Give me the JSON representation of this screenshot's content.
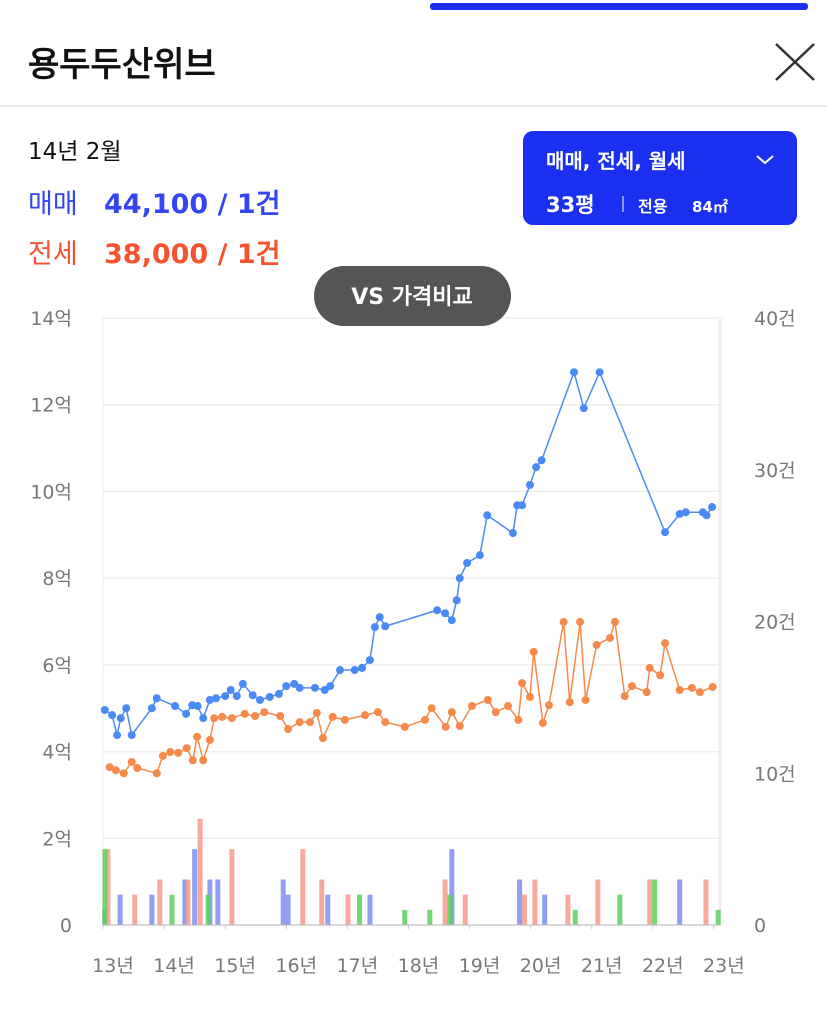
{
  "header": {
    "title": "용두두산위브",
    "date": "14년 2월",
    "sale_label": "매매",
    "sale_value": "44,100 / 1건",
    "jeonse_label": "전세",
    "jeonse_value": "38,000 / 1건",
    "filter": "매매, 전세, 월세",
    "size": "33평",
    "area_label": "전용",
    "area_value": "84㎡",
    "compare": "VS 가격비교"
  },
  "chart_data": {
    "type": "line",
    "grid": true,
    "xlim": [
      13,
      23.1
    ],
    "xticks": [
      {
        "value": 13,
        "label": "13년"
      },
      {
        "value": 14,
        "label": "14년"
      },
      {
        "value": 15,
        "label": "15년"
      },
      {
        "value": 16,
        "label": "16년"
      },
      {
        "value": 17,
        "label": "17년"
      },
      {
        "value": 18,
        "label": "18년"
      },
      {
        "value": 19,
        "label": "19년"
      },
      {
        "value": 20,
        "label": "20년"
      },
      {
        "value": 21,
        "label": "21년"
      },
      {
        "value": 22,
        "label": "22년"
      },
      {
        "value": 23,
        "label": "23년"
      }
    ],
    "ylim": [
      0,
      14
    ],
    "yticks": [
      0,
      {
        "value": 2,
        "label": "2억"
      },
      {
        "value": 4,
        "label": "4억"
      },
      {
        "value": 6,
        "label": "6억"
      },
      {
        "value": 8,
        "label": "8억"
      },
      {
        "value": 10,
        "label": "10억"
      },
      {
        "value": 12,
        "label": "12억"
      },
      {
        "value": 14,
        "label": "14억"
      }
    ],
    "y2lim": [
      0,
      40
    ],
    "y2ticks": [
      0,
      {
        "value": 10,
        "label": "10건"
      },
      {
        "value": 20,
        "label": "20건"
      },
      {
        "value": 30,
        "label": "30건"
      },
      {
        "value": 40,
        "label": "40건"
      }
    ],
    "series": [
      {
        "name": "매매",
        "color": "#4a8af4",
        "x": [
          13.03,
          13.15,
          13.23,
          13.29,
          13.38,
          13.47,
          13.8,
          13.88,
          14.18,
          14.36,
          14.46,
          14.55,
          14.64,
          14.75,
          14.85,
          15.0,
          15.09,
          15.19,
          15.29,
          15.45,
          15.57,
          15.73,
          15.88,
          16.0,
          16.13,
          16.22,
          16.47,
          16.63,
          16.72,
          16.88,
          17.12,
          17.24,
          17.37,
          17.45,
          17.53,
          17.62,
          18.47,
          18.6,
          18.71,
          18.79,
          18.84,
          18.96,
          19.17,
          19.29,
          19.71,
          19.78,
          19.86,
          19.99,
          20.09,
          20.18,
          20.71,
          20.87,
          21.13,
          22.2,
          22.44,
          22.54,
          22.82,
          22.88,
          22.97
        ],
        "values": [
          4.96,
          4.84,
          4.38,
          4.77,
          5.0,
          4.38,
          5.0,
          5.23,
          5.05,
          4.87,
          5.07,
          5.05,
          4.77,
          5.19,
          5.23,
          5.28,
          5.42,
          5.28,
          5.56,
          5.3,
          5.19,
          5.26,
          5.33,
          5.51,
          5.56,
          5.47,
          5.47,
          5.42,
          5.51,
          5.88,
          5.88,
          5.93,
          6.11,
          6.87,
          7.1,
          6.89,
          7.26,
          7.19,
          7.03,
          7.49,
          8.0,
          8.35,
          8.53,
          9.45,
          9.04,
          9.68,
          9.68,
          10.15,
          10.56,
          10.72,
          12.75,
          11.92,
          12.75,
          9.06,
          9.48,
          9.52,
          9.52,
          9.45,
          9.64
        ]
      },
      {
        "name": "전세",
        "color": "#f58a4b",
        "x": [
          13.11,
          13.21,
          13.34,
          13.47,
          13.56,
          13.88,
          13.98,
          14.1,
          14.23,
          14.37,
          14.47,
          14.54,
          14.64,
          14.75,
          14.82,
          14.95,
          15.11,
          15.32,
          15.49,
          15.64,
          15.9,
          16.03,
          16.22,
          16.39,
          16.5,
          16.6,
          16.76,
          16.96,
          17.29,
          17.5,
          17.62,
          17.94,
          18.27,
          18.38,
          18.61,
          18.71,
          18.84,
          19.04,
          19.3,
          19.43,
          19.63,
          19.8,
          19.86,
          19.99,
          20.05,
          20.2,
          20.3,
          20.54,
          20.64,
          20.81,
          20.9,
          21.08,
          21.3,
          21.38,
          21.54,
          21.66,
          21.9,
          21.95,
          22.12,
          22.2,
          22.44,
          22.64,
          22.77,
          22.98
        ],
        "values": [
          3.64,
          3.57,
          3.5,
          3.76,
          3.62,
          3.5,
          3.9,
          3.99,
          3.97,
          4.08,
          3.8,
          4.34,
          3.8,
          4.27,
          4.77,
          4.8,
          4.77,
          4.87,
          4.82,
          4.91,
          4.82,
          4.52,
          4.68,
          4.68,
          4.89,
          4.31,
          4.8,
          4.73,
          4.84,
          4.91,
          4.68,
          4.57,
          4.73,
          5.0,
          4.57,
          4.91,
          4.59,
          5.05,
          5.19,
          4.91,
          5.05,
          4.73,
          5.58,
          5.26,
          6.3,
          4.66,
          5.07,
          6.99,
          5.14,
          6.99,
          5.19,
          6.46,
          6.62,
          6.99,
          5.28,
          5.51,
          5.37,
          5.93,
          5.76,
          6.5,
          5.42,
          5.47,
          5.37,
          5.49
        ]
      },
      {
        "color": "#7d8ef0",
        "axis": "y2",
        "x": [
          13.03,
          13.28,
          13.8,
          14.34,
          14.5,
          14.75,
          14.88,
          15.95,
          16.03,
          16.68,
          17.37,
          18.71,
          19.82,
          20.23,
          22.44
        ],
        "values": [
          1,
          2,
          2,
          3,
          5,
          3,
          3,
          3,
          2,
          2,
          2,
          5,
          3,
          2,
          3
        ]
      },
      {
        "color": "#f79a8a",
        "axis": "y2",
        "x": [
          13.08,
          13.52,
          13.93,
          14.39,
          14.59,
          15.11,
          16.27,
          16.58,
          17.01,
          18.6,
          18.93,
          19.9,
          20.07,
          20.61,
          21.1,
          21.95,
          22.87
        ],
        "values": [
          5,
          2,
          3,
          3,
          7,
          5,
          5,
          3,
          2,
          3,
          2,
          2,
          3,
          2,
          3,
          3,
          3
        ]
      },
      {
        "color": "#5ccf5c",
        "axis": "y2",
        "x": [
          13.03,
          14.13,
          14.72,
          17.2,
          17.94,
          18.35,
          18.68,
          20.73,
          21.46,
          22.03,
          23.07
        ],
        "values": [
          5,
          2,
          2,
          2,
          1,
          1,
          2,
          1,
          2,
          3,
          1
        ]
      }
    ]
  }
}
